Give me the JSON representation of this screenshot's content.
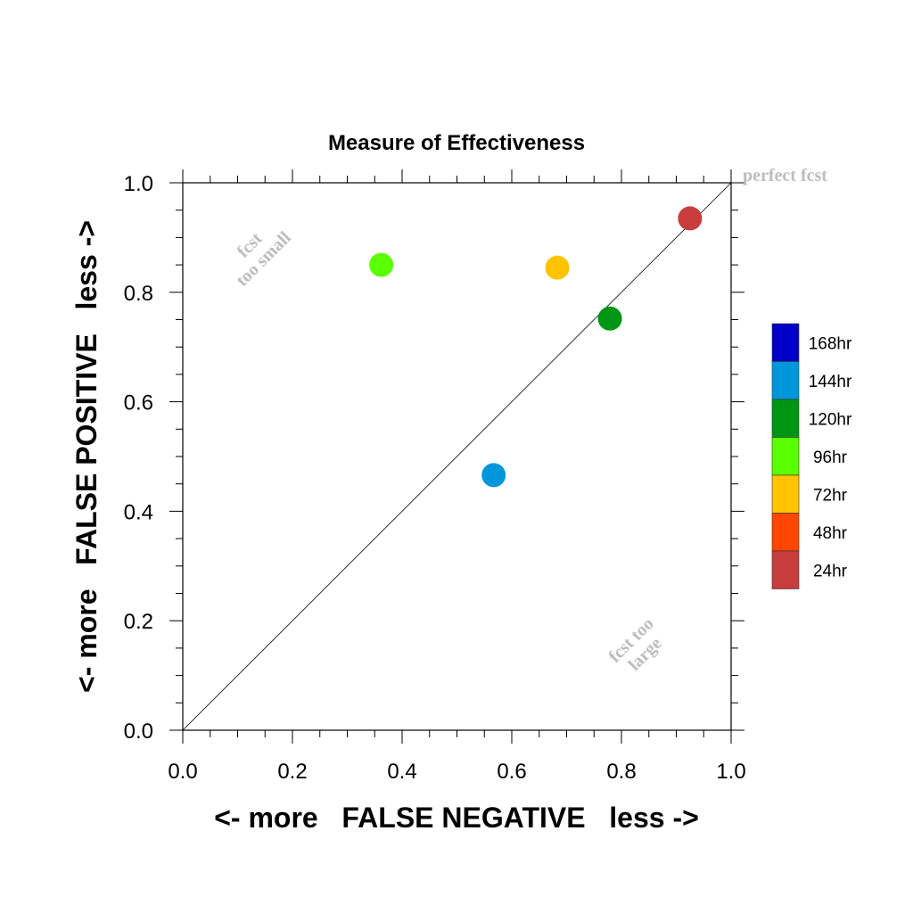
{
  "chart_data": {
    "type": "scatter",
    "title": "Measure of Effectiveness",
    "xlabel": "<- more   FALSE NEGATIVE   less ->",
    "ylabel": "<- more   FALSE POSITIVE   less ->",
    "xlim": [
      0.0,
      1.0
    ],
    "ylim": [
      0.0,
      1.0
    ],
    "xticks": [
      "0.0",
      "0.2",
      "0.4",
      "0.6",
      "0.8",
      "1.0"
    ],
    "yticks": [
      "0.0",
      "0.2",
      "0.4",
      "0.6",
      "0.8",
      "1.0"
    ],
    "grid": false,
    "legend_position": "right",
    "diagonal_line": true,
    "annotations": {
      "perfect": "perfect fcst",
      "small_line1": "fcst",
      "small_line2": "too small",
      "large_line1": "fcst too",
      "large_line2": "large"
    },
    "legend": [
      {
        "label": "168hr",
        "color": "#0000c8"
      },
      {
        "label": "144hr",
        "color": "#0096dc"
      },
      {
        "label": "120hr",
        "color": "#009614"
      },
      {
        "label": "96hr",
        "color": "#5aff00"
      },
      {
        "label": "72hr",
        "color": "#ffc300"
      },
      {
        "label": "48hr",
        "color": "#ff4600"
      },
      {
        "label": "24hr",
        "color": "#c83c3c"
      }
    ],
    "points": [
      {
        "label": "24hr",
        "x": 0.925,
        "y": 0.935,
        "color": "#c83c3c"
      },
      {
        "label": "72hr",
        "x": 0.683,
        "y": 0.845,
        "color": "#ffc300"
      },
      {
        "label": "96hr",
        "x": 0.362,
        "y": 0.85,
        "color": "#5aff00"
      },
      {
        "label": "120hr",
        "x": 0.779,
        "y": 0.752,
        "color": "#009614"
      },
      {
        "label": "144hr",
        "x": 0.567,
        "y": 0.466,
        "color": "#0096dc"
      }
    ]
  }
}
